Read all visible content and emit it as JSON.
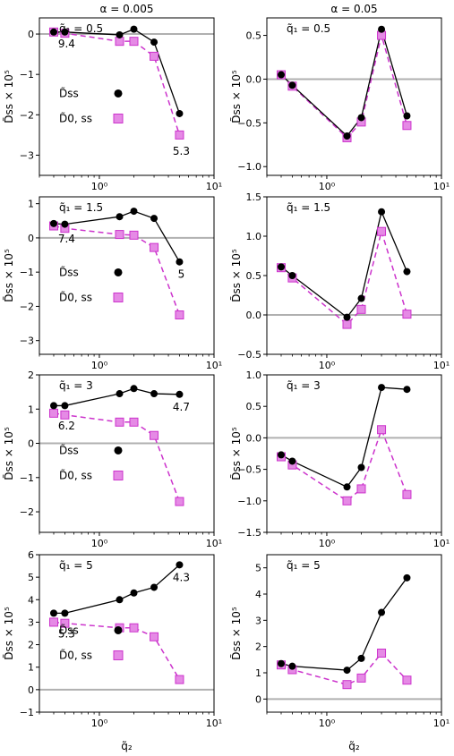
{
  "columns": [
    "α = 0.005",
    "α = 0.05"
  ],
  "ylabel": "D̃ss × 10⁵",
  "xlabel": "q̃₂",
  "legend": [
    "D̃ss",
    "D̃0, ss"
  ],
  "colors": {
    "series1": "#000000",
    "series2": "#cc33cc",
    "marker2_fill": "#e58ae5",
    "zero_line": "#b0b0b0"
  },
  "chart_data": [
    {
      "type": "line",
      "panel": "row1-col1",
      "column_title": "α = 0.005",
      "label": "q̃₁ = 0.5",
      "xscale": "log",
      "xlim": [
        0.3,
        10
      ],
      "ylim": [
        -3.5,
        0.4
      ],
      "xticks": [
        1,
        10
      ],
      "xtick_labels": [
        "10⁰",
        "10¹"
      ],
      "yticks": [
        -3,
        -2,
        -1,
        0
      ],
      "ytick_labels": [
        "−3",
        "−2",
        "−1",
        "0"
      ],
      "x": [
        0.4,
        0.5,
        1.5,
        2,
        3,
        5
      ],
      "series": [
        {
          "name": "D̃ss",
          "values": [
            0.05,
            0.05,
            -0.02,
            0.12,
            -0.2,
            -1.97
          ]
        },
        {
          "name": "D̃0, ss",
          "values": [
            0.05,
            0.02,
            -0.18,
            -0.18,
            -0.55,
            -2.5
          ]
        }
      ],
      "annotations": [
        "9.4",
        "5.3"
      ],
      "legend": true
    },
    {
      "type": "line",
      "panel": "row1-col2",
      "column_title": "α = 0.05",
      "label": "q̃₁ = 0.5",
      "xscale": "log",
      "xlim": [
        0.3,
        10
      ],
      "ylim": [
        -1.1,
        0.7
      ],
      "xticks": [
        1,
        10
      ],
      "xtick_labels": [
        "10⁰",
        "10¹"
      ],
      "yticks": [
        -1.0,
        -0.5,
        0.0,
        0.5
      ],
      "ytick_labels": [
        "−1.0",
        "−0.5",
        "0.0",
        "0.5"
      ],
      "x": [
        0.4,
        0.5,
        1.5,
        2,
        3,
        5
      ],
      "series": [
        {
          "name": "D̃ss",
          "values": [
            0.05,
            -0.07,
            -0.65,
            -0.44,
            0.57,
            -0.42
          ]
        },
        {
          "name": "D̃0, ss",
          "values": [
            0.05,
            -0.08,
            -0.67,
            -0.49,
            0.5,
            -0.53
          ]
        }
      ],
      "annotations": [],
      "legend": false
    },
    {
      "type": "line",
      "panel": "row2-col1",
      "label": "q̃₁ = 1.5",
      "xscale": "log",
      "xlim": [
        0.3,
        10
      ],
      "ylim": [
        -3.4,
        1.2
      ],
      "xticks": [
        1,
        10
      ],
      "xtick_labels": [
        "10⁰",
        "10¹"
      ],
      "yticks": [
        -3,
        -2,
        -1,
        0,
        1
      ],
      "ytick_labels": [
        "−3",
        "−2",
        "−1",
        "0",
        "1"
      ],
      "x": [
        0.4,
        0.5,
        1.5,
        2,
        3,
        5
      ],
      "series": [
        {
          "name": "D̃ss",
          "values": [
            0.42,
            0.4,
            0.62,
            0.78,
            0.57,
            -0.7
          ]
        },
        {
          "name": "D̃0, ss",
          "values": [
            0.35,
            0.28,
            0.1,
            0.08,
            -0.28,
            -2.25
          ]
        }
      ],
      "annotations": [
        "7.4",
        "5"
      ],
      "legend": true
    },
    {
      "type": "line",
      "panel": "row2-col2",
      "label": "q̃₁ = 1.5",
      "xscale": "log",
      "xlim": [
        0.3,
        10
      ],
      "ylim": [
        -0.5,
        1.5
      ],
      "xticks": [
        1,
        10
      ],
      "xtick_labels": [
        "10⁰",
        "10¹"
      ],
      "yticks": [
        -0.5,
        0.0,
        0.5,
        1.0,
        1.5
      ],
      "ytick_labels": [
        "−0.5",
        "0.0",
        "0.5",
        "1.0",
        "1.5"
      ],
      "x": [
        0.4,
        0.5,
        1.5,
        2,
        3,
        5
      ],
      "series": [
        {
          "name": "D̃ss",
          "values": [
            0.61,
            0.5,
            -0.03,
            0.21,
            1.31,
            0.55
          ]
        },
        {
          "name": "D̃0, ss",
          "values": [
            0.6,
            0.47,
            -0.12,
            0.07,
            1.06,
            0.01
          ]
        }
      ],
      "annotations": [],
      "legend": false
    },
    {
      "type": "line",
      "panel": "row3-col1",
      "label": "q̃₁ = 3",
      "xscale": "log",
      "xlim": [
        0.3,
        10
      ],
      "ylim": [
        -2.6,
        2.0
      ],
      "xticks": [
        1,
        10
      ],
      "xtick_labels": [
        "10⁰",
        "10¹"
      ],
      "yticks": [
        -2,
        -1,
        0,
        1,
        2
      ],
      "ytick_labels": [
        "−2",
        "−1",
        "0",
        "1",
        "2"
      ],
      "x": [
        0.4,
        0.5,
        1.5,
        2,
        3,
        5
      ],
      "series": [
        {
          "name": "D̃ss",
          "values": [
            1.1,
            1.1,
            1.45,
            1.6,
            1.45,
            1.43
          ]
        },
        {
          "name": "D̃0, ss",
          "values": [
            0.88,
            0.83,
            0.62,
            0.62,
            0.23,
            -1.7
          ]
        }
      ],
      "annotations": [
        "6.2",
        "4.7"
      ],
      "legend": true
    },
    {
      "type": "line",
      "panel": "row3-col2",
      "label": "q̃₁ = 3",
      "xscale": "log",
      "xlim": [
        0.3,
        10
      ],
      "ylim": [
        -1.5,
        1.0
      ],
      "xticks": [
        1,
        10
      ],
      "xtick_labels": [
        "10⁰",
        "10¹"
      ],
      "yticks": [
        -1.5,
        -1.0,
        -0.5,
        0.0,
        0.5,
        1.0
      ],
      "ytick_labels": [
        "−1.5",
        "−1.0",
        "−0.5",
        "0.0",
        "0.5",
        "1.0"
      ],
      "x": [
        0.4,
        0.5,
        1.5,
        2,
        3,
        5
      ],
      "series": [
        {
          "name": "D̃ss",
          "values": [
            -0.27,
            -0.37,
            -0.78,
            -0.47,
            0.8,
            0.77
          ]
        },
        {
          "name": "D̃0, ss",
          "values": [
            -0.3,
            -0.43,
            -1.0,
            -0.81,
            0.13,
            -0.9
          ]
        }
      ],
      "annotations": [],
      "legend": false
    },
    {
      "type": "line",
      "panel": "row4-col1",
      "label": "q̃₁ = 5",
      "xscale": "log",
      "xlim": [
        0.3,
        10
      ],
      "ylim": [
        -1,
        6
      ],
      "xticks": [
        1,
        10
      ],
      "xtick_labels": [
        "10⁰",
        "10¹"
      ],
      "yticks": [
        -1,
        0,
        1,
        2,
        3,
        4,
        5,
        6
      ],
      "ytick_labels": [
        "−1",
        "0",
        "1",
        "2",
        "3",
        "4",
        "5",
        "6"
      ],
      "x": [
        0.4,
        0.5,
        1.5,
        2,
        3,
        5
      ],
      "series": [
        {
          "name": "D̃ss",
          "values": [
            3.4,
            3.4,
            4.0,
            4.3,
            4.55,
            5.55
          ]
        },
        {
          "name": "D̃0, ss",
          "values": [
            3.0,
            2.95,
            2.75,
            2.75,
            2.35,
            0.45
          ]
        }
      ],
      "annotations": [
        "5.3",
        "4.3"
      ],
      "legend": true
    },
    {
      "type": "line",
      "panel": "row4-col2",
      "label": "q̃₁ = 5",
      "xscale": "log",
      "xlim": [
        0.3,
        10
      ],
      "ylim": [
        -0.5,
        5.5
      ],
      "xticks": [
        1,
        10
      ],
      "xtick_labels": [
        "10⁰",
        "10¹"
      ],
      "yticks": [
        0,
        1,
        2,
        3,
        4,
        5
      ],
      "ytick_labels": [
        "0",
        "1",
        "2",
        "3",
        "4",
        "5"
      ],
      "x": [
        0.4,
        0.5,
        1.5,
        2,
        3,
        5
      ],
      "series": [
        {
          "name": "D̃ss",
          "values": [
            1.35,
            1.25,
            1.1,
            1.55,
            3.3,
            4.62
          ]
        },
        {
          "name": "D̃0, ss",
          "values": [
            1.3,
            1.12,
            0.55,
            0.8,
            1.75,
            0.72
          ]
        }
      ],
      "annotations": [],
      "legend": false
    }
  ]
}
